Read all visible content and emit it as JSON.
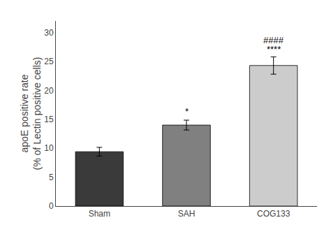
{
  "chart_data": {
    "type": "bar",
    "categories": [
      "Sham",
      "SAH",
      "COG133"
    ],
    "values": [
      9.4,
      14.0,
      24.3
    ],
    "errors": [
      0.75,
      0.85,
      1.5
    ],
    "colors": [
      "#3a3a3a",
      "#808080",
      "#cccccc"
    ],
    "ylabel": "apoE positive rate\n(% of Lectin positive cells)",
    "ylim": [
      0,
      32
    ],
    "yticks": [
      0,
      5,
      10,
      15,
      20,
      25,
      30
    ],
    "grid": false,
    "annotations": [
      {
        "text": "*",
        "x": "SAH",
        "y": 15.2
      },
      {
        "text": "####",
        "x": "COG133",
        "y": 27.5
      },
      {
        "text": "****",
        "x": "COG133",
        "y": 26.0
      }
    ]
  }
}
